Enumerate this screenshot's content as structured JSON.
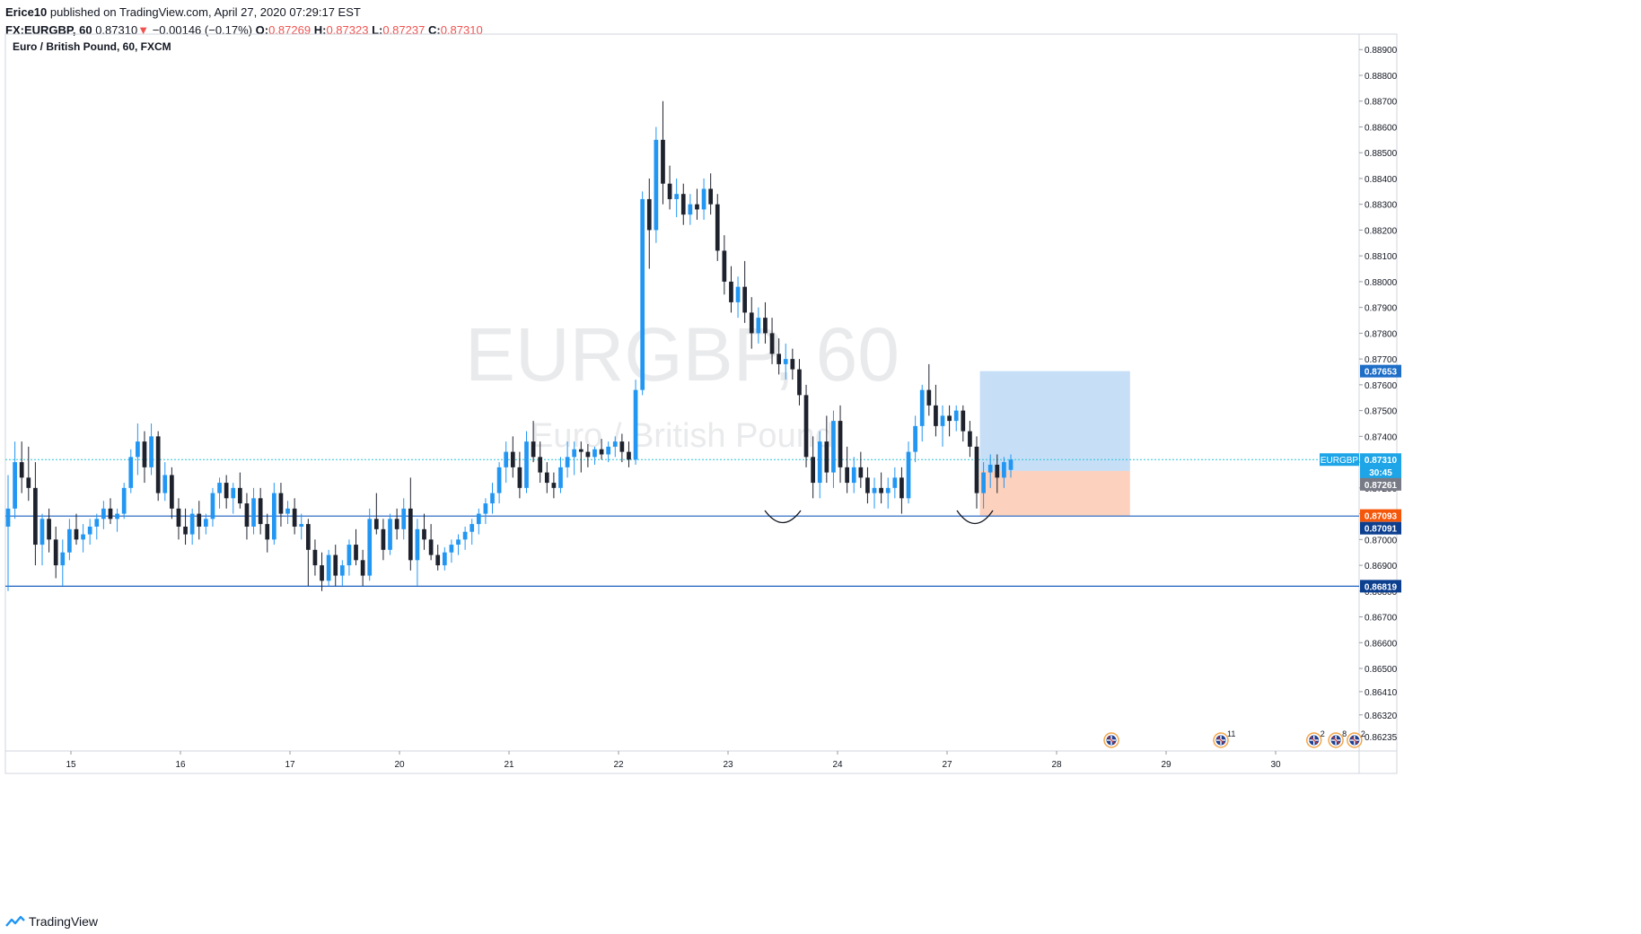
{
  "header": {
    "author": "Erice10",
    "published": "published on TradingView.com, April 27, 2020 07:29:17 EST",
    "symbol": "FX:EURGBP, 60",
    "last": "0.87310",
    "arrow": "▼",
    "change": "−0.00146 (−0.17%)",
    "o_label": "O:",
    "o_value": "0.87269",
    "h_label": "H:",
    "h_value": "0.87323",
    "l_label": "L:",
    "l_value": "0.87237",
    "c_label": "C:",
    "c_value": "0.87310"
  },
  "footer": {
    "brand": "TradingView"
  },
  "colors": {
    "up": "#2196f3",
    "down": "#1e222d",
    "grid_border": "#d1d4dc",
    "level_line": "#1c5fbf",
    "current_line": "#26c6da",
    "profit_zone": "#bcd8f5",
    "loss_zone": "#fcc9b1",
    "tag_blue": "#1e6ec8",
    "tag_navy": "#0d3f8f",
    "tag_orange": "#f5570a",
    "tag_gray": "#787b86",
    "tag_cyan": "#1ea5e8"
  },
  "chart_data": {
    "type": "candlestick",
    "title": "Euro / British Pound, 60, FXCM",
    "watermark_symbol": "EURGBP, 60",
    "watermark_name": "Euro / British Pound",
    "x_ticks": [
      "15",
      "16",
      "17",
      "20",
      "21",
      "22",
      "23",
      "24",
      "27",
      "28",
      "29",
      "30"
    ],
    "y_range": [
      0.8618,
      0.8896
    ],
    "y_ticks": [
      "0.88900",
      "0.88800",
      "0.88700",
      "0.88600",
      "0.88500",
      "0.88400",
      "0.88300",
      "0.88200",
      "0.88100",
      "0.88000",
      "0.87900",
      "0.87800",
      "0.87700",
      "0.87600",
      "0.87500",
      "0.87400",
      "0.87300",
      "0.87200",
      "0.87100",
      "0.87000",
      "0.86900",
      "0.86800",
      "0.86700",
      "0.86600",
      "0.86500",
      "0.86410",
      "0.86320",
      "0.86235"
    ],
    "horizontal_levels": [
      0.87091,
      0.86819
    ],
    "current_price": 0.8731,
    "price_tags": [
      {
        "label": "0.87653",
        "price": 0.87653,
        "color": "#1e6ec8"
      },
      {
        "label": "EURGBP",
        "label2": "0.87310",
        "price": 0.8731,
        "color": "#1ea5e8"
      },
      {
        "label": "30:45",
        "price": 0.87262,
        "color": "#1ea5e8"
      },
      {
        "label": "0.87261",
        "price": 0.87214,
        "color": "#787b86"
      },
      {
        "label": "0.87093",
        "price": 0.87093,
        "color": "#f5570a"
      },
      {
        "label": "0.87091",
        "price": 0.87044,
        "color": "#0d3f8f"
      },
      {
        "label": "0.86819",
        "price": 0.86819,
        "color": "#0d3f8f"
      }
    ],
    "position": {
      "entry": 0.87266,
      "target": 0.87653,
      "stop": 0.87093
    },
    "event_markers": [
      {
        "label": "",
        "x_day": 28.5
      },
      {
        "label": "11",
        "x_day": 29.5
      },
      {
        "label": "2",
        "x_day": 30.35
      },
      {
        "label": "8",
        "x_day": 30.55
      },
      {
        "label": "2",
        "x_day": 30.72
      }
    ],
    "candles": [
      [
        0.8705,
        0.8725,
        0.868,
        0.8712
      ],
      [
        0.8712,
        0.8738,
        0.8708,
        0.873
      ],
      [
        0.873,
        0.8738,
        0.8718,
        0.8724
      ],
      [
        0.8724,
        0.8736,
        0.8715,
        0.872
      ],
      [
        0.872,
        0.873,
        0.869,
        0.8698
      ],
      [
        0.8698,
        0.871,
        0.869,
        0.8708
      ],
      [
        0.8708,
        0.8712,
        0.8695,
        0.87
      ],
      [
        0.87,
        0.8705,
        0.8685,
        0.869
      ],
      [
        0.869,
        0.87,
        0.8682,
        0.8695
      ],
      [
        0.8695,
        0.8708,
        0.8692,
        0.8704
      ],
      [
        0.8704,
        0.871,
        0.8698,
        0.87
      ],
      [
        0.87,
        0.8706,
        0.8695,
        0.8702
      ],
      [
        0.8702,
        0.8708,
        0.8698,
        0.8705
      ],
      [
        0.8705,
        0.871,
        0.87,
        0.8708
      ],
      [
        0.8708,
        0.8715,
        0.8704,
        0.8712
      ],
      [
        0.8712,
        0.8716,
        0.8706,
        0.8708
      ],
      [
        0.8708,
        0.8712,
        0.8703,
        0.871
      ],
      [
        0.871,
        0.8722,
        0.8708,
        0.872
      ],
      [
        0.872,
        0.8735,
        0.8718,
        0.8732
      ],
      [
        0.8732,
        0.8745,
        0.8725,
        0.8738
      ],
      [
        0.8738,
        0.8742,
        0.8722,
        0.8728
      ],
      [
        0.8728,
        0.8745,
        0.8725,
        0.874
      ],
      [
        0.874,
        0.8742,
        0.8715,
        0.8718
      ],
      [
        0.8718,
        0.873,
        0.8715,
        0.8725
      ],
      [
        0.8725,
        0.8728,
        0.8708,
        0.8712
      ],
      [
        0.8712,
        0.8716,
        0.87,
        0.8705
      ],
      [
        0.8705,
        0.8712,
        0.8698,
        0.8702
      ],
      [
        0.8702,
        0.8712,
        0.8698,
        0.871
      ],
      [
        0.871,
        0.8715,
        0.87,
        0.8705
      ],
      [
        0.8705,
        0.871,
        0.8702,
        0.8708
      ],
      [
        0.8708,
        0.872,
        0.8705,
        0.8718
      ],
      [
        0.8718,
        0.8724,
        0.8712,
        0.8722
      ],
      [
        0.8722,
        0.8725,
        0.8712,
        0.8716
      ],
      [
        0.8716,
        0.8722,
        0.871,
        0.872
      ],
      [
        0.872,
        0.8726,
        0.8712,
        0.8714
      ],
      [
        0.8714,
        0.8718,
        0.87,
        0.8705
      ],
      [
        0.8705,
        0.872,
        0.8702,
        0.8716
      ],
      [
        0.8716,
        0.872,
        0.8702,
        0.8706
      ],
      [
        0.8706,
        0.871,
        0.8695,
        0.87
      ],
      [
        0.87,
        0.8722,
        0.8698,
        0.8718
      ],
      [
        0.8718,
        0.8722,
        0.8705,
        0.871
      ],
      [
        0.871,
        0.8715,
        0.8706,
        0.8712
      ],
      [
        0.8712,
        0.8716,
        0.8702,
        0.8705
      ],
      [
        0.8705,
        0.871,
        0.87,
        0.8706
      ],
      [
        0.8706,
        0.8708,
        0.8682,
        0.8696
      ],
      [
        0.8696,
        0.87,
        0.8686,
        0.869
      ],
      [
        0.869,
        0.8695,
        0.868,
        0.8684
      ],
      [
        0.8684,
        0.8696,
        0.8682,
        0.8694
      ],
      [
        0.8694,
        0.8698,
        0.8682,
        0.8686
      ],
      [
        0.8686,
        0.8692,
        0.8682,
        0.869
      ],
      [
        0.869,
        0.87,
        0.8686,
        0.8698
      ],
      [
        0.8698,
        0.8704,
        0.869,
        0.8692
      ],
      [
        0.8692,
        0.8696,
        0.8682,
        0.8686
      ],
      [
        0.8686,
        0.8712,
        0.8684,
        0.8708
      ],
      [
        0.8708,
        0.8718,
        0.8702,
        0.8704
      ],
      [
        0.8704,
        0.8708,
        0.8692,
        0.8696
      ],
      [
        0.8696,
        0.871,
        0.8694,
        0.8708
      ],
      [
        0.8708,
        0.8712,
        0.87,
        0.8704
      ],
      [
        0.8704,
        0.8716,
        0.87,
        0.8712
      ],
      [
        0.8712,
        0.8724,
        0.8688,
        0.8692
      ],
      [
        0.8692,
        0.8708,
        0.8682,
        0.8704
      ],
      [
        0.8704,
        0.871,
        0.8696,
        0.87
      ],
      [
        0.87,
        0.8706,
        0.8692,
        0.8694
      ],
      [
        0.8694,
        0.8698,
        0.8688,
        0.869
      ],
      [
        0.869,
        0.8697,
        0.8688,
        0.8695
      ],
      [
        0.8695,
        0.87,
        0.8691,
        0.8698
      ],
      [
        0.8698,
        0.8702,
        0.8694,
        0.87
      ],
      [
        0.87,
        0.8705,
        0.8696,
        0.8703
      ],
      [
        0.8703,
        0.8708,
        0.8698,
        0.8706
      ],
      [
        0.8706,
        0.8712,
        0.8702,
        0.871
      ],
      [
        0.871,
        0.8716,
        0.8706,
        0.8714
      ],
      [
        0.8714,
        0.8722,
        0.871,
        0.8718
      ],
      [
        0.8718,
        0.873,
        0.8714,
        0.8728
      ],
      [
        0.8728,
        0.8738,
        0.8722,
        0.8734
      ],
      [
        0.8734,
        0.874,
        0.8724,
        0.8728
      ],
      [
        0.8728,
        0.8734,
        0.8716,
        0.872
      ],
      [
        0.872,
        0.8742,
        0.8718,
        0.8738
      ],
      [
        0.8738,
        0.8746,
        0.873,
        0.8732
      ],
      [
        0.8732,
        0.8738,
        0.8722,
        0.8726
      ],
      [
        0.8726,
        0.873,
        0.8718,
        0.8722
      ],
      [
        0.8722,
        0.8726,
        0.8716,
        0.872
      ],
      [
        0.872,
        0.8732,
        0.8718,
        0.8728
      ],
      [
        0.8728,
        0.8738,
        0.8724,
        0.8732
      ],
      [
        0.8732,
        0.8738,
        0.8725,
        0.8735
      ],
      [
        0.8735,
        0.8738,
        0.8726,
        0.8734
      ],
      [
        0.8734,
        0.8737,
        0.8728,
        0.8732
      ],
      [
        0.8732,
        0.8736,
        0.8729,
        0.8735
      ],
      [
        0.8735,
        0.8739,
        0.8731,
        0.8733
      ],
      [
        0.8733,
        0.8738,
        0.873,
        0.8736
      ],
      [
        0.8736,
        0.874,
        0.8732,
        0.8738
      ],
      [
        0.8738,
        0.8741,
        0.873,
        0.8734
      ],
      [
        0.8734,
        0.8738,
        0.8728,
        0.8731
      ],
      [
        0.8731,
        0.8762,
        0.8729,
        0.8758
      ],
      [
        0.8758,
        0.8835,
        0.8756,
        0.8832
      ],
      [
        0.8832,
        0.884,
        0.8805,
        0.882
      ],
      [
        0.882,
        0.886,
        0.8815,
        0.8855
      ],
      [
        0.8855,
        0.887,
        0.883,
        0.8838
      ],
      [
        0.8838,
        0.8845,
        0.8828,
        0.8832
      ],
      [
        0.8832,
        0.884,
        0.8825,
        0.8834
      ],
      [
        0.8834,
        0.8838,
        0.8822,
        0.8826
      ],
      [
        0.8826,
        0.8834,
        0.8822,
        0.883
      ],
      [
        0.883,
        0.8836,
        0.8824,
        0.8828
      ],
      [
        0.8828,
        0.884,
        0.8824,
        0.8836
      ],
      [
        0.8836,
        0.8842,
        0.8826,
        0.883
      ],
      [
        0.883,
        0.8834,
        0.8808,
        0.8812
      ],
      [
        0.8812,
        0.8818,
        0.8795,
        0.88
      ],
      [
        0.88,
        0.8806,
        0.8788,
        0.8792
      ],
      [
        0.8792,
        0.8802,
        0.8786,
        0.8798
      ],
      [
        0.8798,
        0.8808,
        0.8784,
        0.8788
      ],
      [
        0.8788,
        0.8794,
        0.8774,
        0.878
      ],
      [
        0.878,
        0.879,
        0.8776,
        0.8786
      ],
      [
        0.8786,
        0.8792,
        0.8776,
        0.878
      ],
      [
        0.878,
        0.8786,
        0.8768,
        0.8772
      ],
      [
        0.8772,
        0.8778,
        0.8764,
        0.8768
      ],
      [
        0.8768,
        0.8776,
        0.8762,
        0.877
      ],
      [
        0.877,
        0.8774,
        0.8762,
        0.8766
      ],
      [
        0.8766,
        0.877,
        0.8752,
        0.8756
      ],
      [
        0.8756,
        0.876,
        0.8728,
        0.8732
      ],
      [
        0.8732,
        0.874,
        0.8716,
        0.8722
      ],
      [
        0.8722,
        0.8742,
        0.8716,
        0.8738
      ],
      [
        0.8738,
        0.8748,
        0.8722,
        0.8726
      ],
      [
        0.8726,
        0.875,
        0.872,
        0.8746
      ],
      [
        0.8746,
        0.8752,
        0.8722,
        0.8728
      ],
      [
        0.8728,
        0.8736,
        0.8718,
        0.8722
      ],
      [
        0.8722,
        0.8732,
        0.8718,
        0.8728
      ],
      [
        0.8728,
        0.8734,
        0.872,
        0.8724
      ],
      [
        0.8724,
        0.8728,
        0.8714,
        0.8718
      ],
      [
        0.8718,
        0.8724,
        0.8712,
        0.872
      ],
      [
        0.872,
        0.8726,
        0.8714,
        0.8718
      ],
      [
        0.8718,
        0.8724,
        0.8712,
        0.872
      ],
      [
        0.872,
        0.8728,
        0.8716,
        0.8724
      ],
      [
        0.8724,
        0.8728,
        0.871,
        0.8716
      ],
      [
        0.8716,
        0.8738,
        0.8714,
        0.8734
      ],
      [
        0.8734,
        0.8748,
        0.873,
        0.8744
      ],
      [
        0.8744,
        0.876,
        0.8738,
        0.8758
      ],
      [
        0.8758,
        0.8768,
        0.8748,
        0.8752
      ],
      [
        0.8752,
        0.876,
        0.874,
        0.8744
      ],
      [
        0.8744,
        0.8752,
        0.8736,
        0.8748
      ],
      [
        0.8748,
        0.8752,
        0.874,
        0.8746
      ],
      [
        0.8746,
        0.8752,
        0.8742,
        0.875
      ],
      [
        0.875,
        0.8752,
        0.8738,
        0.8742
      ],
      [
        0.8742,
        0.8746,
        0.8732,
        0.8736
      ],
      [
        0.8736,
        0.874,
        0.8712,
        0.8718
      ],
      [
        0.8718,
        0.873,
        0.8712,
        0.8726
      ],
      [
        0.8726,
        0.8733,
        0.872,
        0.8729
      ],
      [
        0.8729,
        0.8733,
        0.8718,
        0.8724
      ],
      [
        0.8724,
        0.8732,
        0.872,
        0.873
      ],
      [
        0.8727,
        0.8733,
        0.8724,
        0.8731
      ]
    ]
  }
}
